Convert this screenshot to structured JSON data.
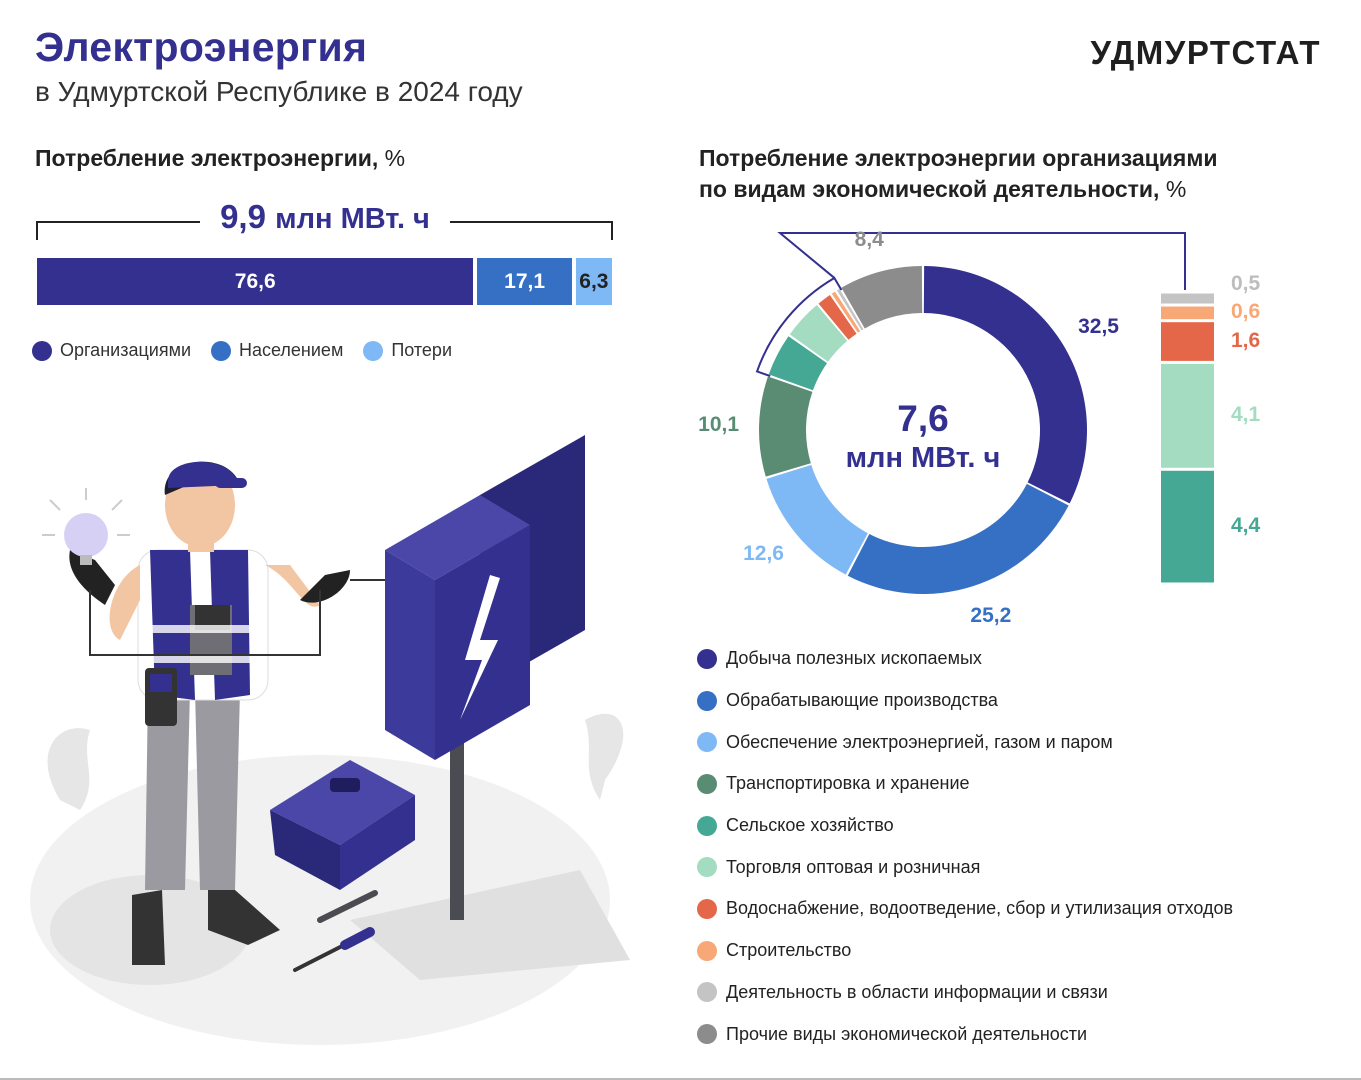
{
  "header": {
    "title": "Электроэнергия",
    "subtitle": "в Удмуртской Республике в 2024 году",
    "brand": "УДМУРТСТАТ"
  },
  "colors": {
    "dark_blue": "#33308f",
    "blue": "#3570c4",
    "light_blue": "#7fb9f5",
    "transport_green": "#5a8c74",
    "agri_teal": "#44a894",
    "trade_mint": "#a3dcc1",
    "water_red": "#e5674a",
    "construction_orange": "#f7a876",
    "info_gray": "#c4c4c4",
    "other_gray": "#8c8c8c"
  },
  "chart_data": [
    {
      "type": "bar",
      "title": "Потребление электроэнергии,",
      "unit": "%",
      "total_value": "9,9",
      "total_unit": "млн МВт. ч",
      "series": [
        {
          "name": "Организациями",
          "value": 76.6,
          "label": "76,6",
          "color": "#33308f"
        },
        {
          "name": "Населением",
          "value": 17.1,
          "label": "17,1",
          "color": "#3570c4"
        },
        {
          "name": "Потери",
          "value": 6.3,
          "label": "6,3",
          "color": "#7fb9f5"
        }
      ]
    },
    {
      "type": "pie",
      "title_line1": "Потребление электроэнергии организациями",
      "title_line2": "по видам экономической деятельности,",
      "unit": "%",
      "center_value": "7,6",
      "center_unit": "млн МВт. ч",
      "slices": [
        {
          "name": "Добыча полезных ископаемых",
          "value": 32.5,
          "label": "32,5",
          "color": "#33308f"
        },
        {
          "name": "Обрабатывающие производства",
          "value": 25.2,
          "label": "25,2",
          "color": "#3570c4"
        },
        {
          "name": "Обеспечение электроэнергией, газом и паром",
          "value": 12.6,
          "label": "12,6",
          "color": "#7fb9f5"
        },
        {
          "name": "Транспортировка и хранение",
          "value": 10.1,
          "label": "10,1",
          "color": "#5a8c74"
        },
        {
          "name": "Сельское хозяйство",
          "value": 4.4,
          "label": "4,4",
          "color": "#44a894"
        },
        {
          "name": "Торговля оптовая и розничная",
          "value": 4.1,
          "label": "4,1",
          "color": "#a3dcc1"
        },
        {
          "name": "Водоснабжение, водоотведение, сбор и утилизация отходов",
          "value": 1.6,
          "label": "1,6",
          "color": "#e5674a"
        },
        {
          "name": "Строительство",
          "value": 0.6,
          "label": "0,6",
          "color": "#f7a876"
        },
        {
          "name": "Деятельность в области информации и связи",
          "value": 0.5,
          "label": "0,5",
          "color": "#c4c4c4"
        },
        {
          "name": "Прочие виды экономической деятельности",
          "value": 8.4,
          "label": "8,4",
          "color": "#8c8c8c"
        }
      ]
    }
  ]
}
